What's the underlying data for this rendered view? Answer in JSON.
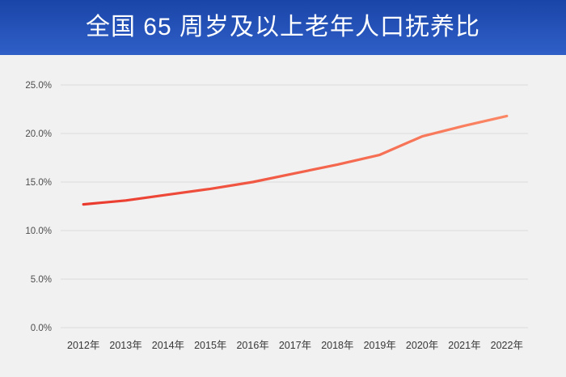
{
  "header": {
    "title": "全国 65 周岁及以上老年人口抚养比"
  },
  "colors": {
    "header_gradient_top": "#1a45a8",
    "header_gradient_bottom": "#2f5fc7",
    "title_text": "#ffffff",
    "chart_background": "#f1f1f1",
    "gridline": "#e2e2e2",
    "line_gradient_start": "#ea392d",
    "line_gradient_end": "#fb8765",
    "ytick_text": "#4d4d4d",
    "xtick_text": "#383838"
  },
  "chart_data": {
    "type": "line",
    "title": "全国 65 周岁及以上老年人口抚养比",
    "categories": [
      "2012年",
      "2013年",
      "2014年",
      "2015年",
      "2016年",
      "2017年",
      "2018年",
      "2019年",
      "2020年",
      "2021年",
      "2022年"
    ],
    "values": [
      12.7,
      13.1,
      13.7,
      14.3,
      15.0,
      15.9,
      16.8,
      17.8,
      19.7,
      20.8,
      21.8
    ],
    "unit": "%",
    "xlabel": "",
    "ylabel": "",
    "ylim": [
      0,
      25
    ],
    "yticks": [
      {
        "value": 0,
        "label": "0.0%"
      },
      {
        "value": 5,
        "label": "5.0%"
      },
      {
        "value": 10,
        "label": "10.0%"
      },
      {
        "value": 15,
        "label": "15.0%"
      },
      {
        "value": 20,
        "label": "20.0%"
      },
      {
        "value": 25,
        "label": "25.0%"
      }
    ],
    "grid": "horizontal",
    "legend": "none"
  }
}
